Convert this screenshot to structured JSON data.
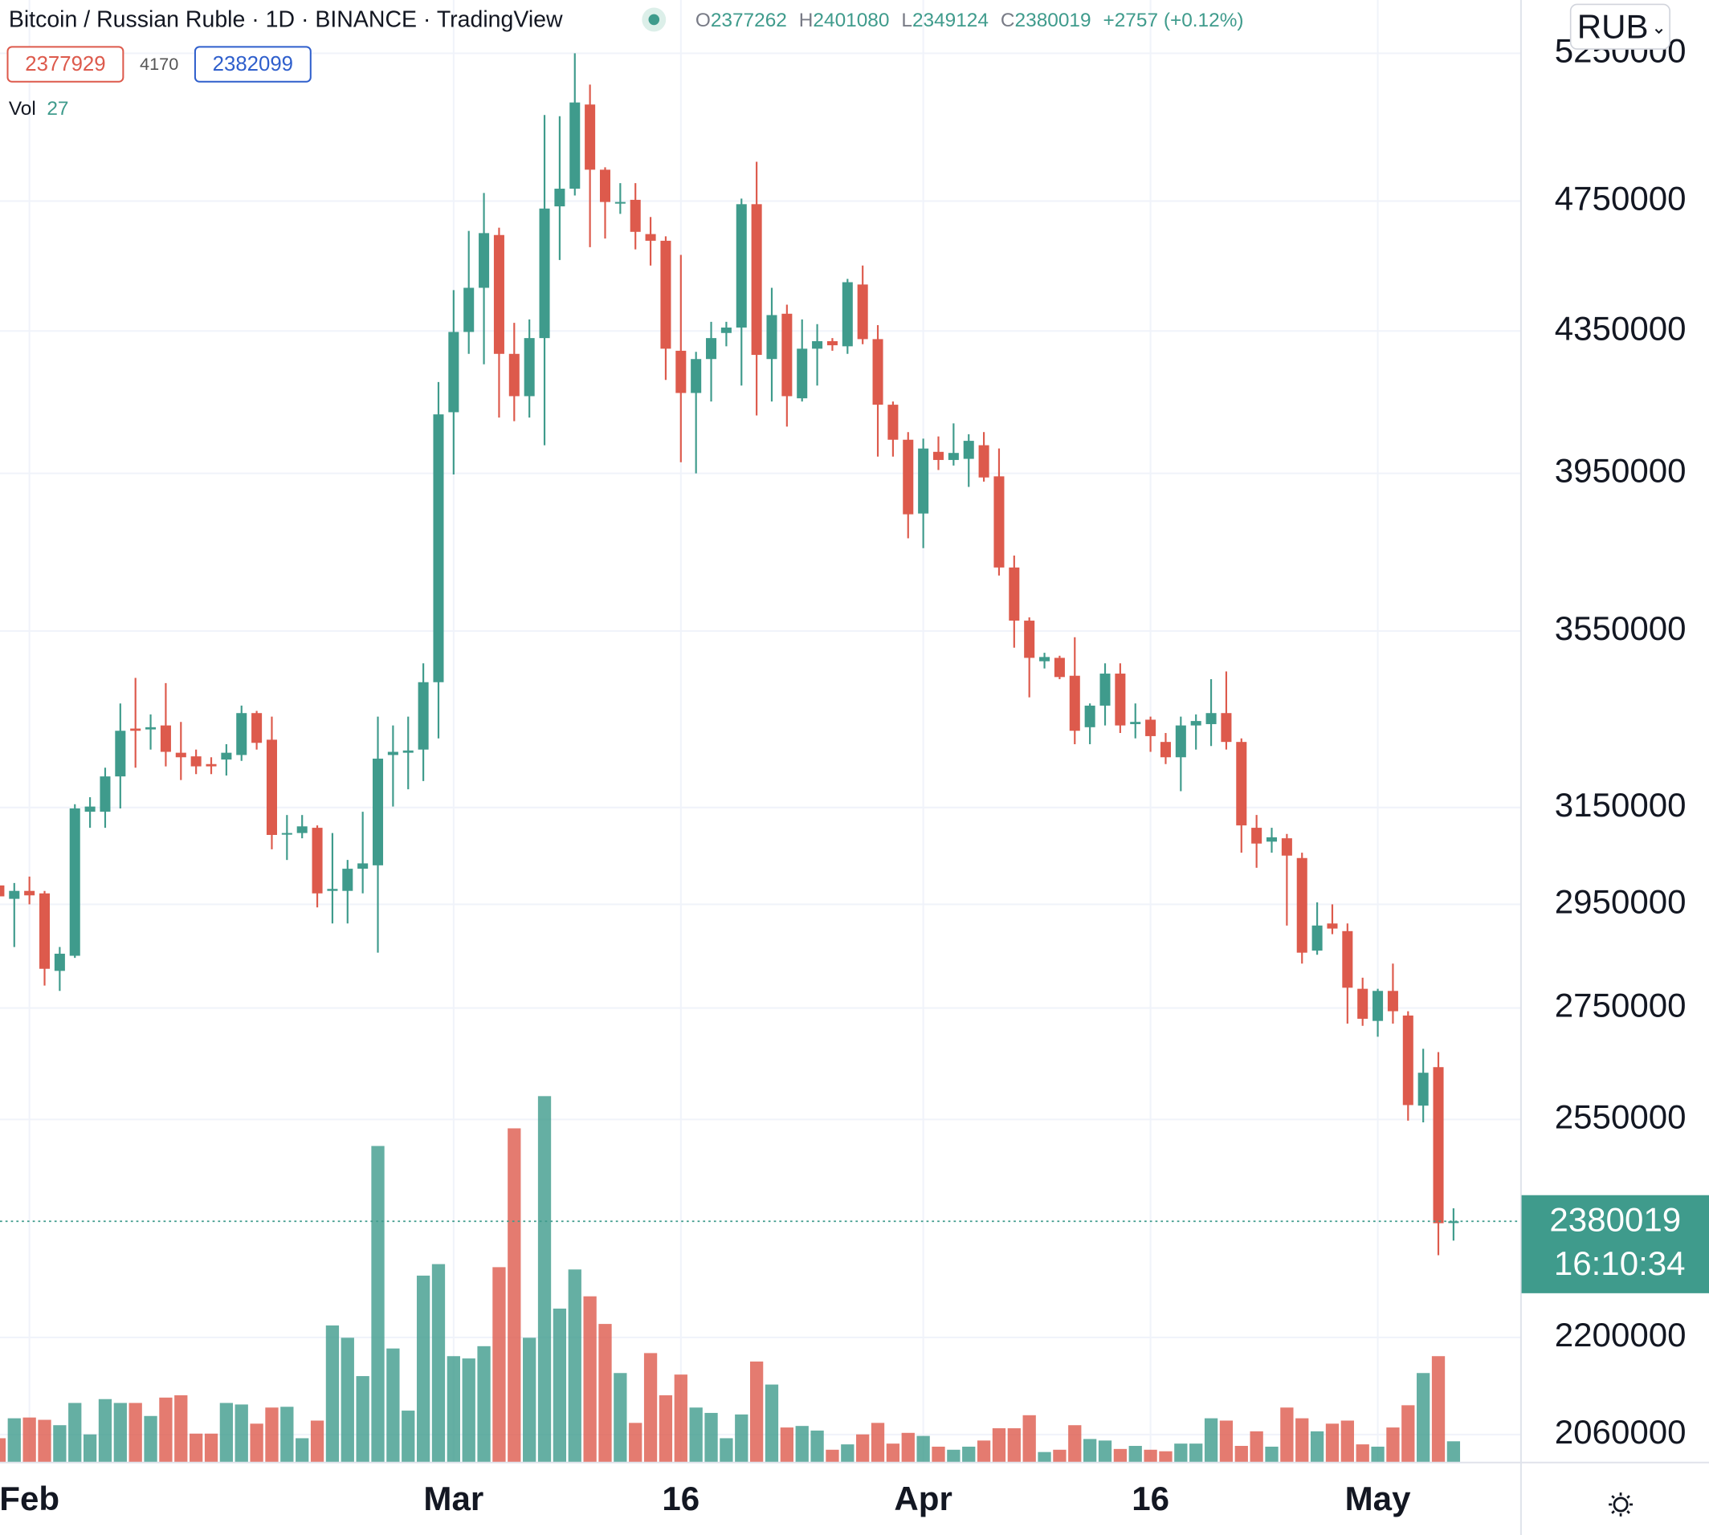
{
  "chart_data": {
    "type": "candlestick",
    "title": "Bitcoin / Russian Ruble · 1D · BINANCE · TradingView",
    "ohlc_labels": [
      "O",
      "H",
      "L",
      "C"
    ],
    "change": "+2757 (+0.12%)",
    "bid": 2377929,
    "spread": 4170,
    "ask": 2382099,
    "volume_label": "Vol",
    "countdown": "16:10:34",
    "currency": "RUB",
    "log_scale": true,
    "grid": true,
    "up_color": "#3f9b8c",
    "down_color": "#dd5a4c",
    "x": [
      "Jan 30",
      "Jan 31",
      "Feb 1",
      "Feb 2",
      "Feb 3",
      "Feb 4",
      "Feb 5",
      "Feb 6",
      "Feb 7",
      "Feb 8",
      "Feb 9",
      "Feb 10",
      "Feb 11",
      "Feb 12",
      "Feb 13",
      "Feb 14",
      "Feb 15",
      "Feb 16",
      "Feb 17",
      "Feb 18",
      "Feb 19",
      "Feb 20",
      "Feb 21",
      "Feb 22",
      "Feb 23",
      "Feb 24",
      "Feb 25",
      "Feb 26",
      "Feb 27",
      "Feb 28",
      "Mar 1",
      "Mar 2",
      "Mar 3",
      "Mar 4",
      "Mar 5",
      "Mar 6",
      "Mar 7",
      "Mar 8",
      "Mar 9",
      "Mar 10",
      "Mar 11",
      "Mar 12",
      "Mar 13",
      "Mar 14",
      "Mar 15",
      "Mar 16",
      "Mar 17",
      "Mar 18",
      "Mar 19",
      "Mar 20",
      "Mar 21",
      "Mar 22",
      "Mar 23",
      "Mar 24",
      "Mar 25",
      "Mar 26",
      "Mar 27",
      "Mar 28",
      "Mar 29",
      "Mar 30",
      "Mar 31",
      "Apr 1",
      "Apr 2",
      "Apr 3",
      "Apr 4",
      "Apr 5",
      "Apr 6",
      "Apr 7",
      "Apr 8",
      "Apr 9",
      "Apr 10",
      "Apr 11",
      "Apr 12",
      "Apr 13",
      "Apr 14",
      "Apr 15",
      "Apr 16",
      "Apr 17",
      "Apr 18",
      "Apr 19",
      "Apr 20",
      "Apr 21",
      "Apr 22",
      "Apr 23",
      "Apr 24",
      "Apr 25",
      "Apr 26",
      "Apr 27",
      "Apr 28",
      "Apr 29",
      "Apr 30",
      "May 1",
      "May 2",
      "May 3",
      "May 4",
      "May 5",
      "May 6"
    ],
    "open": [
      2988000,
      2961000,
      2977000,
      2972000,
      2820000,
      2849000,
      3141000,
      3141000,
      3217000,
      3323000,
      3321000,
      3330000,
      3269000,
      3261000,
      3244000,
      3254000,
      3264000,
      3358000,
      3298000,
      3094000,
      3096000,
      3107000,
      2977000,
      2977000,
      3022000,
      3029000,
      3264000,
      3269000,
      3276000,
      3429000,
      4117000,
      4347000,
      4479000,
      4642000,
      4283000,
      4162000,
      4329000,
      4733000,
      4790000,
      5071000,
      4852000,
      4743000,
      4754000,
      4645000,
      4624000,
      4292000,
      4171000,
      4268000,
      4344000,
      4360000,
      4740000,
      4268000,
      4401000,
      4156000,
      4298000,
      4320000,
      4305000,
      4489000,
      4326000,
      4138000,
      4041000,
      3844000,
      4008000,
      3986000,
      3989000,
      4026000,
      3942000,
      3706000,
      3575000,
      3478000,
      3486000,
      3444000,
      3326000,
      3375000,
      3449000,
      3333000,
      3343000,
      3293000,
      3259000,
      3330000,
      3333000,
      3358000,
      3293000,
      3107000,
      3078000,
      3085000,
      3044000,
      2859000,
      2912000,
      2897000,
      2786000,
      2726000,
      2782000,
      2736000,
      2574000,
      2642000,
      2377262
    ],
    "high": [
      3006000,
      2993000,
      3006000,
      2977000,
      2866000,
      3157000,
      3172000,
      3236000,
      3380000,
      3439000,
      3355000,
      3427000,
      3338000,
      3276000,
      3259000,
      3288000,
      3375000,
      3363000,
      3350000,
      3134000,
      3134000,
      3112000,
      3096000,
      3040000,
      3141000,
      3350000,
      3330000,
      3350000,
      3473000,
      4202000,
      4472000,
      4655000,
      4776000,
      4665000,
      4374000,
      4384000,
      5035000,
      5031000,
      5250000,
      5140000,
      4860000,
      4808000,
      4808000,
      4699000,
      4638000,
      4580000,
      4289000,
      4377000,
      4377000,
      4758000,
      4878000,
      4479000,
      4428000,
      4384000,
      4370000,
      4329000,
      4506000,
      4547000,
      4367000,
      4147000,
      4062000,
      4044000,
      4050000,
      4086000,
      4056000,
      4062000,
      4017000,
      3736000,
      3583000,
      3498000,
      3491000,
      3535000,
      3380000,
      3473000,
      3473000,
      3380000,
      3350000,
      3313000,
      3350000,
      3355000,
      3436000,
      3454000,
      3301000,
      3134000,
      3107000,
      3094000,
      3055000,
      2954000,
      2950000,
      2912000,
      2807000,
      2786000,
      2834000,
      2744000,
      2675000,
      2669000,
      2401080
    ],
    "low": [
      2929000,
      2866000,
      2950000,
      2792000,
      2782000,
      2845000,
      3107000,
      3107000,
      3148000,
      3236000,
      3276000,
      3239000,
      3209000,
      3222000,
      3222000,
      3219000,
      3251000,
      3276000,
      3062000,
      3040000,
      3085000,
      2944000,
      2912000,
      2912000,
      2972000,
      2855000,
      3152000,
      3189000,
      3207000,
      3301000,
      3947000,
      4283000,
      4253000,
      4102000,
      4092000,
      4102000,
      4026000,
      4564000,
      4768000,
      4604000,
      4631000,
      4709000,
      4597000,
      4547000,
      4208000,
      3980000,
      3950000,
      4147000,
      4305000,
      4192000,
      4108000,
      4147000,
      4077000,
      4147000,
      4192000,
      4292000,
      4283000,
      4311000,
      3995000,
      3995000,
      3780000,
      3755000,
      3959000,
      3971000,
      3914000,
      3928000,
      3686000,
      3510000,
      3394000,
      3461000,
      3436000,
      3288000,
      3288000,
      3330000,
      3313000,
      3301000,
      3271000,
      3244000,
      3185000,
      3276000,
      3284000,
      3276000,
      3055000,
      3024000,
      3055000,
      2908000,
      2834000,
      2851000,
      2891000,
      2721000,
      2717000,
      2697000,
      2721000,
      2548000,
      2545000,
      2326000,
      2349124
    ],
    "close": [
      2966000,
      2977000,
      2968000,
      2824000,
      2853000,
      3148000,
      3152000,
      3217000,
      3318000,
      3318000,
      3326000,
      3271000,
      3259000,
      3239000,
      3239000,
      3269000,
      3358000,
      3291000,
      3092000,
      3096000,
      3110000,
      2972000,
      2981000,
      3022000,
      3033000,
      3256000,
      3271000,
      3274000,
      3429000,
      4111000,
      4347000,
      4479000,
      4648000,
      4283000,
      4162000,
      4329000,
      4726000,
      4790000,
      5078000,
      4852000,
      4747000,
      4747000,
      4652000,
      4624000,
      4298000,
      4171000,
      4268000,
      4329000,
      4360000,
      4740000,
      4280000,
      4397000,
      4162000,
      4298000,
      4320000,
      4308000,
      4496000,
      4326000,
      4138000,
      4041000,
      3842000,
      4017000,
      3986000,
      4005000,
      4038000,
      3939000,
      3706000,
      3575000,
      3486000,
      3488000,
      3441000,
      3318000,
      3375000,
      3449000,
      3330000,
      3338000,
      3306000,
      3259000,
      3330000,
      3340000,
      3358000,
      3293000,
      3112000,
      3074000,
      3087000,
      3049000,
      2855000,
      2908000,
      2902000,
      2788000,
      2730000,
      2782000,
      2744000,
      2575000,
      2632000,
      2377000,
      2380019
    ],
    "volume": [
      31,
      57,
      58,
      55,
      48,
      77,
      36,
      82,
      77,
      77,
      60,
      84,
      87,
      37,
      37,
      77,
      75,
      50,
      71,
      72,
      31,
      54,
      178,
      162,
      112,
      412,
      148,
      67,
      243,
      258,
      138,
      135,
      151,
      254,
      435,
      162,
      477,
      200,
      251,
      216,
      180,
      116,
      51,
      142,
      87,
      114,
      71,
      64,
      31,
      62,
      131,
      101,
      45,
      47,
      41,
      16,
      23,
      36,
      51,
      24,
      38,
      34,
      20,
      16,
      20,
      28,
      44,
      44,
      61,
      13,
      16,
      48,
      30,
      28,
      17,
      21,
      16,
      14,
      24,
      24,
      57,
      54,
      21,
      40,
      20,
      71,
      57,
      40,
      50,
      54,
      23,
      20,
      45,
      74,
      116,
      138,
      27
    ],
    "ylim": [
      2022000,
      5443000
    ],
    "yticks": [
      5250000,
      4750000,
      4350000,
      3950000,
      3550000,
      3150000,
      2950000,
      2750000,
      2550000,
      2200000,
      2060000
    ],
    "vlim": [
      0,
      1906
    ],
    "xticks": [
      {
        "value": "Feb 1",
        "label": "Feb"
      },
      {
        "value": "Mar 1",
        "label": "Mar"
      },
      {
        "value": "Mar 16",
        "label": "16"
      },
      {
        "value": "Apr 1",
        "label": "Apr"
      },
      {
        "value": "Apr 16",
        "label": "16"
      },
      {
        "value": "May 1",
        "label": "May"
      }
    ]
  }
}
